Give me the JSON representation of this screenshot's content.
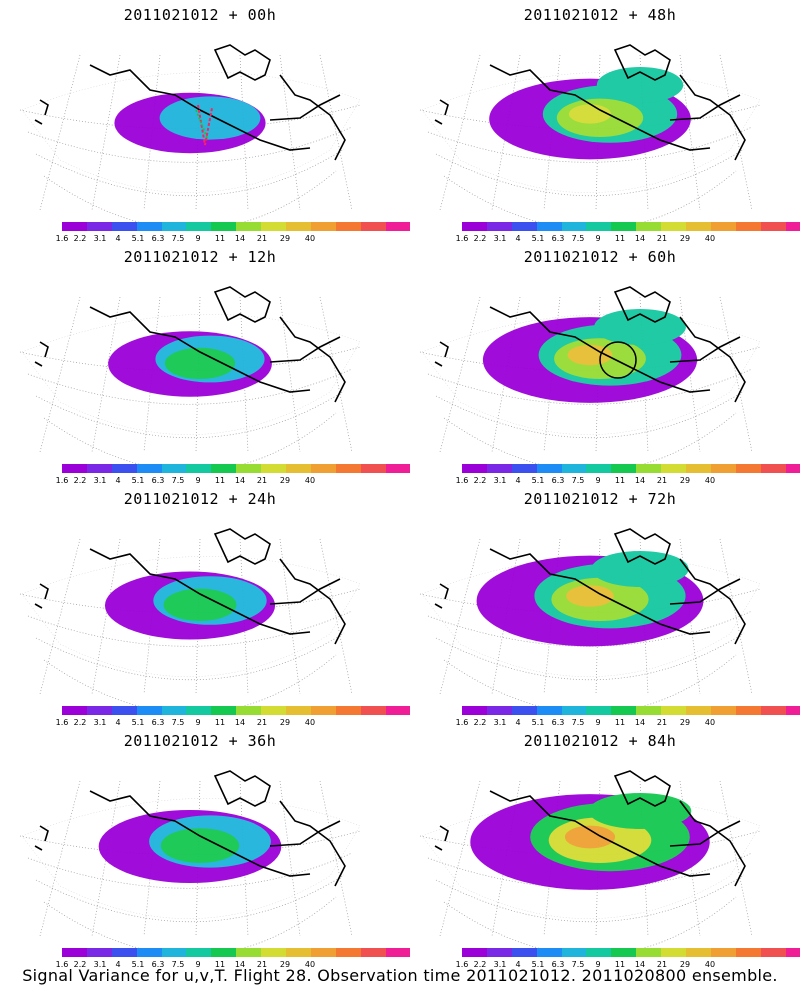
{
  "panels": [
    {
      "title": "2011021012 + 00h",
      "intensity": 0.2,
      "marker": "flight-track"
    },
    {
      "title": "2011021012 + 48h",
      "intensity": 0.6,
      "marker": ""
    },
    {
      "title": "2011021012 + 12h",
      "intensity": 0.3,
      "marker": ""
    },
    {
      "title": "2011021012 + 60h",
      "intensity": 0.7,
      "marker": "circle"
    },
    {
      "title": "2011021012 + 24h",
      "intensity": 0.35,
      "marker": ""
    },
    {
      "title": "2011021012 + 72h",
      "intensity": 0.8,
      "marker": ""
    },
    {
      "title": "2011021012 + 36h",
      "intensity": 0.45,
      "marker": ""
    },
    {
      "title": "2011021012 + 84h",
      "intensity": 0.9,
      "marker": ""
    }
  ],
  "colorbar": {
    "colors": [
      "#9b00d9",
      "#7a28e6",
      "#3c50f0",
      "#1e8cf5",
      "#1eb4dc",
      "#14c8a0",
      "#14c850",
      "#96dc32",
      "#d2dc32",
      "#e6be32",
      "#f0a032",
      "#f57832",
      "#f05050",
      "#f01e96"
    ],
    "labels": [
      "1.6",
      "2.2",
      "3.1",
      "4",
      "5.1",
      "6.3",
      "7.5",
      "9",
      "11",
      "14",
      "21",
      "29",
      "40"
    ]
  },
  "footer": "Signal Variance for u,v,T. Flight 28. Observation time 2011021012. 2011020800 ensemble."
}
